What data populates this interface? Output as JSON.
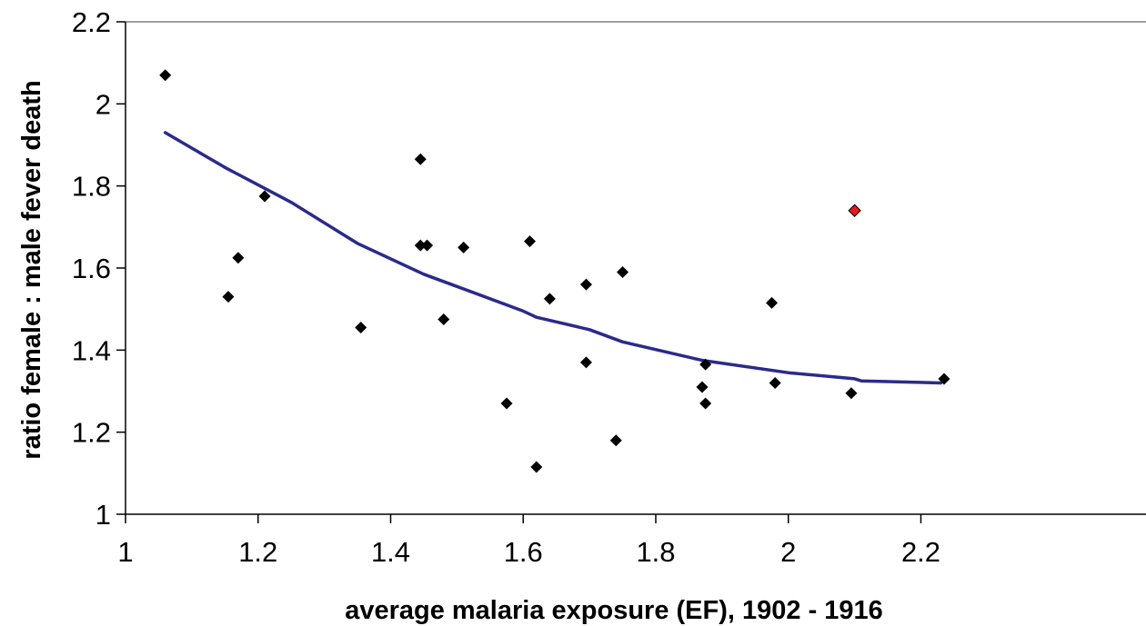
{
  "chart_data": {
    "type": "scatter",
    "title": "",
    "xlabel": "average malaria exposure (EF), 1902 - 1916",
    "ylabel": "ratio female : male fever death",
    "xlim": [
      1,
      2.2
    ],
    "ylim": [
      1,
      2.2
    ],
    "x_ticks": [
      1,
      1.2,
      1.4,
      1.6,
      1.8,
      2,
      2.2
    ],
    "y_ticks": [
      1,
      1.2,
      1.4,
      1.6,
      1.8,
      2,
      2.2
    ],
    "x_tick_labels": [
      "1",
      "1.2",
      "1.4",
      "1.6",
      "1.8",
      "2",
      "2.2"
    ],
    "y_tick_labels": [
      "1",
      "1.2",
      "1.4",
      "1.6",
      "1.8",
      "2",
      "2.2"
    ],
    "grid": false,
    "legend": "none",
    "series": [
      {
        "marker": "diamond",
        "color": "#000000",
        "points": [
          {
            "x": 1.06,
            "y": 2.07
          },
          {
            "x": 1.155,
            "y": 1.53
          },
          {
            "x": 1.17,
            "y": 1.625
          },
          {
            "x": 1.21,
            "y": 1.775
          },
          {
            "x": 1.355,
            "y": 1.455
          },
          {
            "x": 1.445,
            "y": 1.865
          },
          {
            "x": 1.445,
            "y": 1.655
          },
          {
            "x": 1.455,
            "y": 1.655
          },
          {
            "x": 1.48,
            "y": 1.475
          },
          {
            "x": 1.51,
            "y": 1.65
          },
          {
            "x": 1.575,
            "y": 1.27
          },
          {
            "x": 1.61,
            "y": 1.665
          },
          {
            "x": 1.62,
            "y": 1.115
          },
          {
            "x": 1.64,
            "y": 1.525
          },
          {
            "x": 1.695,
            "y": 1.56
          },
          {
            "x": 1.695,
            "y": 1.37
          },
          {
            "x": 1.74,
            "y": 1.18
          },
          {
            "x": 1.75,
            "y": 1.59
          },
          {
            "x": 1.87,
            "y": 1.31
          },
          {
            "x": 1.875,
            "y": 1.365
          },
          {
            "x": 1.875,
            "y": 1.27
          },
          {
            "x": 1.975,
            "y": 1.515
          },
          {
            "x": 1.98,
            "y": 1.32
          },
          {
            "x": 2.095,
            "y": 1.295
          },
          {
            "x": 2.235,
            "y": 1.33
          }
        ]
      },
      {
        "marker": "diamond",
        "color": "#e8191c",
        "points": [
          {
            "x": 2.1,
            "y": 1.74
          }
        ]
      }
    ],
    "trendline": {
      "color": "#2a2a8c",
      "points": [
        {
          "x": 1.06,
          "y": 1.93
        },
        {
          "x": 1.15,
          "y": 1.845
        },
        {
          "x": 1.25,
          "y": 1.76
        },
        {
          "x": 1.35,
          "y": 1.66
        },
        {
          "x": 1.45,
          "y": 1.585
        },
        {
          "x": 1.5,
          "y": 1.555
        },
        {
          "x": 1.6,
          "y": 1.495
        },
        {
          "x": 1.62,
          "y": 1.48
        },
        {
          "x": 1.7,
          "y": 1.45
        },
        {
          "x": 1.75,
          "y": 1.42
        },
        {
          "x": 1.87,
          "y": 1.375
        },
        {
          "x": 2.0,
          "y": 1.345
        },
        {
          "x": 2.1,
          "y": 1.33
        },
        {
          "x": 2.11,
          "y": 1.325
        },
        {
          "x": 2.23,
          "y": 1.32
        }
      ]
    }
  }
}
